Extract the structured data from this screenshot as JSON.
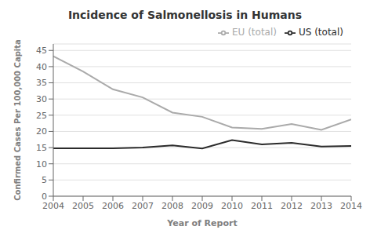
{
  "chart_data": {
    "type": "line",
    "title": "Incidence of Salmonellosis in Humans",
    "xlabel": "Year of Report",
    "ylabel": "Confirmed Cases Per 100,000 Capita",
    "x": [
      2004,
      2005,
      2006,
      2007,
      2008,
      2009,
      2010,
      2011,
      2012,
      2013,
      2014
    ],
    "series": [
      {
        "name": "US (total)",
        "color": "#2b2b2b",
        "values": [
          14.8,
          14.8,
          14.8,
          15.0,
          15.7,
          14.7,
          17.3,
          16.0,
          16.5,
          15.3,
          15.5
        ]
      },
      {
        "name": "EU (total)",
        "color": "#aaaaaa",
        "values": [
          43.2,
          38.5,
          33.0,
          30.5,
          25.8,
          24.5,
          21.2,
          20.8,
          22.3,
          20.5,
          23.7
        ]
      }
    ],
    "xlim": [
      2004,
      2014
    ],
    "xticks": [
      2004,
      2005,
      2006,
      2007,
      2008,
      2009,
      2010,
      2011,
      2012,
      2013,
      2014
    ],
    "ylim": [
      0,
      47
    ],
    "yticks": [
      0,
      5,
      10,
      15,
      20,
      25,
      30,
      35,
      40,
      45
    ],
    "grid": "y",
    "legend": "upper right"
  }
}
